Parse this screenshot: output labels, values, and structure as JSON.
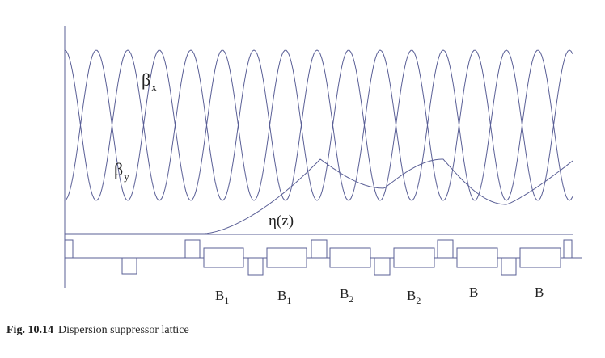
{
  "figure": {
    "curve_labels": {
      "beta_x": {
        "main": "β",
        "sub": "x"
      },
      "beta_y": {
        "main": "β",
        "sub": "y"
      },
      "eta": "η(z)"
    },
    "bend_labels": [
      {
        "main": "B",
        "sub": "1"
      },
      {
        "main": "B",
        "sub": "1"
      },
      {
        "main": "B",
        "sub": "2"
      },
      {
        "main": "B",
        "sub": "2"
      },
      {
        "main": "B",
        "sub": ""
      },
      {
        "main": "B",
        "sub": ""
      }
    ]
  },
  "caption": {
    "number": "Fig. 10.14",
    "text": "Dispersion suppressor lattice"
  }
}
